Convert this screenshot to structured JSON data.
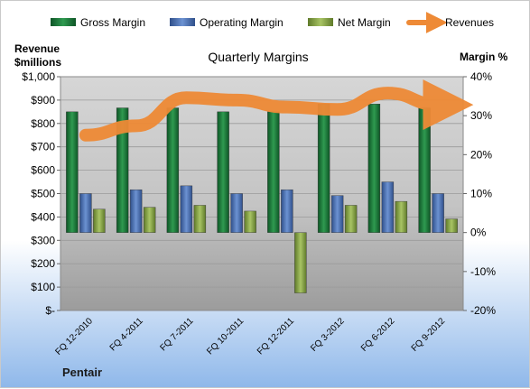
{
  "chart_data": {
    "type": "bar",
    "title": "Quarterly Margins",
    "company_label": "Pentair",
    "y_left_label_line1": "Revenue",
    "y_left_label_line2": "$millions",
    "y_right_label": "Margin %",
    "categories": [
      "FQ 12-2010",
      "FQ 4-2011",
      "FQ 7-2011",
      "FQ 10-2011",
      "FQ 12-2011",
      "FQ 3-2012",
      "FQ 6-2012",
      "FQ 9-2012"
    ],
    "y_left_range": [
      0,
      1000
    ],
    "y_left_ticks": [
      "$-",
      "$100",
      "$200",
      "$300",
      "$400",
      "$500",
      "$600",
      "$700",
      "$800",
      "$900",
      "$1,000"
    ],
    "y_right_range": [
      -20,
      40
    ],
    "y_right_ticks": [
      "-20%",
      "-10%",
      "0%",
      "10%",
      "20%",
      "30%",
      "40%"
    ],
    "series": [
      {
        "name": "Gross Margin",
        "axis": "right",
        "kind": "bar",
        "color": "#1e7a3c",
        "values": [
          31,
          32,
          32,
          31,
          31,
          33,
          33,
          32
        ]
      },
      {
        "name": "Operating Margin",
        "axis": "right",
        "kind": "bar",
        "color": "#4a72b8",
        "values": [
          10,
          11,
          12,
          10,
          11,
          9.5,
          13,
          10
        ]
      },
      {
        "name": "Net Margin",
        "axis": "right",
        "kind": "bar",
        "color": "#8aa84a",
        "values": [
          6,
          6.5,
          7,
          5.5,
          -15.5,
          7,
          8,
          3.5
        ]
      },
      {
        "name": "Revenues",
        "axis": "left",
        "kind": "line",
        "color": "#ee8a36",
        "values": [
          750,
          790,
          910,
          900,
          870,
          860,
          930,
          880
        ]
      }
    ],
    "grid": true,
    "legend_position": "top"
  }
}
